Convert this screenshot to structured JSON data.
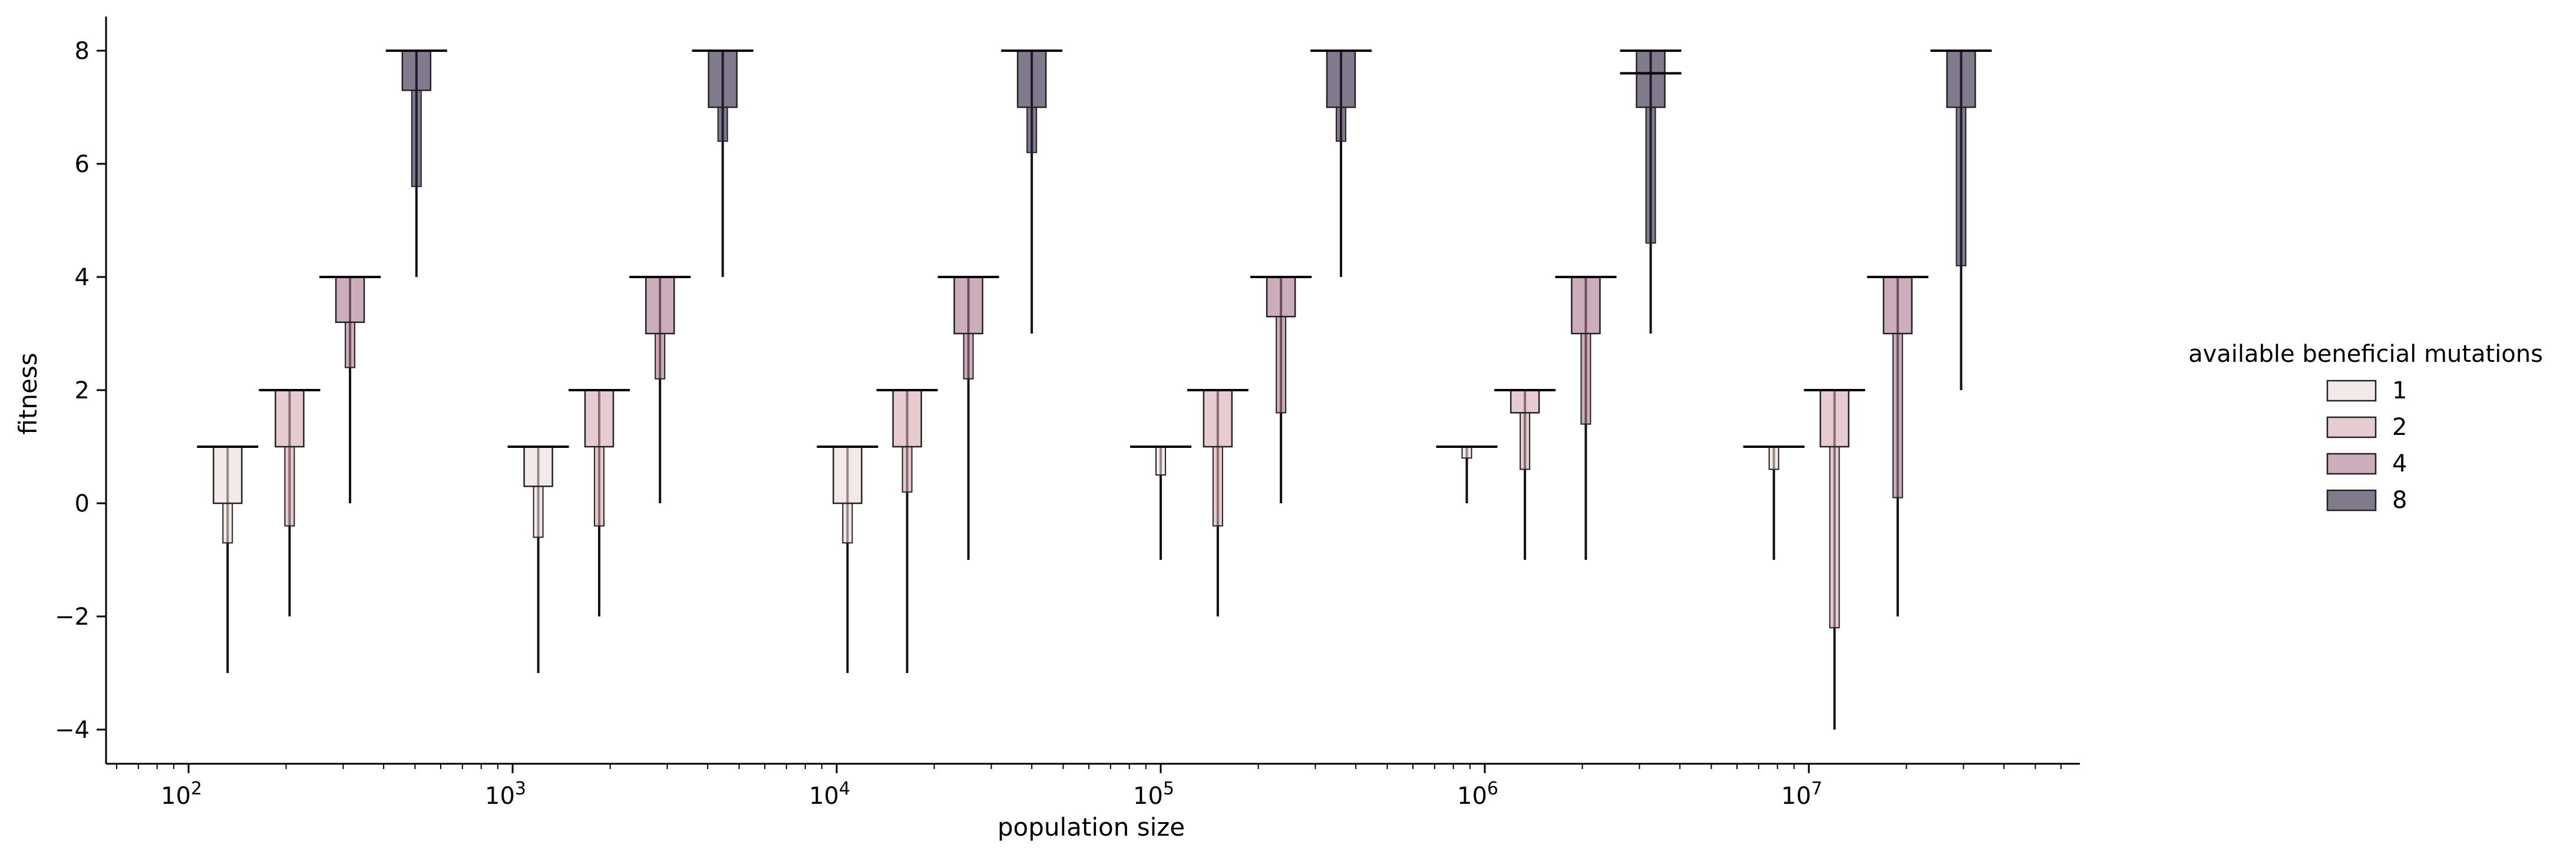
{
  "chart_data": {
    "type": "boxen",
    "xlabel": "population size",
    "ylabel": "fitness",
    "x_scale": "log",
    "x_tick_values": [
      100,
      1000,
      10000,
      100000,
      1000000,
      10000000
    ],
    "x_tick_exponents": [
      "2",
      "3",
      "4",
      "5",
      "6",
      "7"
    ],
    "y_ticks": [
      -4,
      -2,
      0,
      2,
      4,
      6,
      8
    ],
    "y_tick_labels": [
      "−4",
      "−2",
      "0",
      "2",
      "4",
      "6",
      "8"
    ],
    "ylim": [
      -4.6,
      8.6
    ],
    "legend": {
      "title": "available beneficial mutations",
      "placement": "right",
      "entries": [
        {
          "label": "1",
          "color": "#eddada"
        },
        {
          "label": "2",
          "color": "#d6aab0"
        },
        {
          "label": "4",
          "color": "#a8768f"
        },
        {
          "label": "8",
          "color": "#2d2240"
        }
      ]
    },
    "series": [
      {
        "name": "1",
        "color": "#eddada",
        "groups": [
          {
            "x": 132,
            "max": 1,
            "q3": 1,
            "median": 1,
            "q1": 0,
            "whisker_low": -0.7,
            "min": -3
          },
          {
            "x": 1200,
            "max": 1,
            "q3": 1,
            "median": 1,
            "q1": 0.3,
            "whisker_low": -0.6,
            "min": -3
          },
          {
            "x": 10800,
            "max": 1,
            "q3": 1,
            "median": 1,
            "q1": 0,
            "whisker_low": -0.7,
            "min": -3
          },
          {
            "x": 100000,
            "max": 1,
            "q3": 1,
            "median": 1,
            "q1": 1,
            "whisker_low": 0.5,
            "min": -1
          },
          {
            "x": 880000,
            "max": 1,
            "q3": 1,
            "median": 1,
            "q1": 1,
            "whisker_low": 0.8,
            "min": 0
          },
          {
            "x": 7800000,
            "max": 1,
            "q3": 1,
            "median": 1,
            "q1": 1,
            "whisker_low": 0.6,
            "min": -1
          }
        ]
      },
      {
        "name": "2",
        "color": "#d6aab0",
        "groups": [
          {
            "x": 205,
            "max": 2,
            "q3": 2,
            "median": 2,
            "q1": 1,
            "whisker_low": -0.4,
            "min": -2
          },
          {
            "x": 1850,
            "max": 2,
            "q3": 2,
            "median": 2,
            "q1": 1,
            "whisker_low": -0.4,
            "min": -2
          },
          {
            "x": 16500,
            "max": 2,
            "q3": 2,
            "median": 2,
            "q1": 1,
            "whisker_low": 0.2,
            "min": -3
          },
          {
            "x": 150000,
            "max": 2,
            "q3": 2,
            "median": 2,
            "q1": 1,
            "whisker_low": -0.4,
            "min": -2
          },
          {
            "x": 1330000,
            "max": 2,
            "q3": 2,
            "median": 2,
            "q1": 1.6,
            "whisker_low": 0.6,
            "min": -1
          },
          {
            "x": 12000000,
            "max": 2,
            "q3": 2,
            "median": 2,
            "q1": 1,
            "whisker_low": -2.2,
            "min": -4
          }
        ]
      },
      {
        "name": "4",
        "color": "#a8768f",
        "groups": [
          {
            "x": 315,
            "max": 4,
            "q3": 4,
            "median": 4,
            "q1": 3.2,
            "whisker_low": 2.4,
            "min": 0
          },
          {
            "x": 2850,
            "max": 4,
            "q3": 4,
            "median": 4,
            "q1": 3,
            "whisker_low": 2.2,
            "min": 0
          },
          {
            "x": 25500,
            "max": 4,
            "q3": 4,
            "median": 4,
            "q1": 3,
            "whisker_low": 2.2,
            "min": -1
          },
          {
            "x": 235000,
            "max": 4,
            "q3": 4,
            "median": 4,
            "q1": 3.3,
            "whisker_low": 1.6,
            "min": 0
          },
          {
            "x": 2050000,
            "max": 4,
            "q3": 4,
            "median": 4,
            "q1": 3,
            "whisker_low": 1.4,
            "min": -1
          },
          {
            "x": 18800000,
            "max": 4,
            "q3": 4,
            "median": 4,
            "q1": 3,
            "whisker_low": 0.1,
            "min": -2
          }
        ]
      },
      {
        "name": "8",
        "color": "#2d2240",
        "groups": [
          {
            "x": 505,
            "max": 8,
            "q3": 8,
            "median": 8,
            "q1": 7.3,
            "whisker_low": 5.6,
            "min": 4
          },
          {
            "x": 4450,
            "max": 8,
            "q3": 8,
            "median": 8,
            "q1": 7,
            "whisker_low": 6.4,
            "min": 4
          },
          {
            "x": 40000,
            "max": 8,
            "q3": 8,
            "median": 8,
            "q1": 7,
            "whisker_low": 6.2,
            "min": 3
          },
          {
            "x": 360000,
            "max": 8,
            "q3": 8,
            "median": 8,
            "q1": 7,
            "whisker_low": 6.4,
            "min": 4
          },
          {
            "x": 3250000,
            "max": 8,
            "q3": 8,
            "median": 7.6,
            "q1": 7,
            "whisker_low": 4.6,
            "min": 3
          },
          {
            "x": 29500000,
            "max": 8,
            "q3": 8,
            "median": 8,
            "q1": 7,
            "whisker_low": 4.2,
            "min": 2
          }
        ]
      }
    ]
  }
}
